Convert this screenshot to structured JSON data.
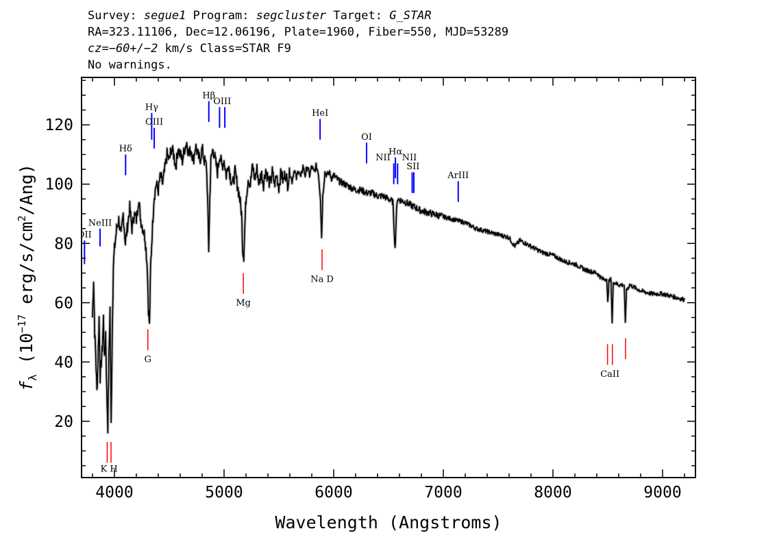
{
  "header": {
    "survey_label": "Survey:",
    "survey": "segue1",
    "program_label": "Program:",
    "program": "segcluster",
    "target_label": "Target:",
    "target": "G_STAR",
    "line2": "RA=323.11106, Dec=12.06196, Plate=1960, Fiber=550, MJD=53289",
    "cz": "cz=−60+/−2",
    "line3_rest": " km/s Class=STAR F9",
    "line4": "No warnings."
  },
  "chart_data": {
    "type": "line",
    "xlabel": "Wavelength (Angstroms)",
    "ylabel": "f_λ (10^-17 erg/s/cm^2/Ang)",
    "xlim": [
      3700,
      9300
    ],
    "ylim": [
      1,
      136
    ],
    "x_ticks": [
      4000,
      5000,
      6000,
      7000,
      8000,
      9000
    ],
    "y_ticks": [
      20,
      40,
      60,
      80,
      100,
      120
    ],
    "grid": false,
    "spectrum_color": "#000000",
    "error_color": "#bbbbbb",
    "emission_color": "#0000ff",
    "absorption_color": "#ff0000",
    "spectrum_points": [
      [
        3800,
        55
      ],
      [
        3810,
        68
      ],
      [
        3820,
        50
      ],
      [
        3830,
        42
      ],
      [
        3840,
        30
      ],
      [
        3850,
        40
      ],
      [
        3860,
        55
      ],
      [
        3870,
        35
      ],
      [
        3880,
        40
      ],
      [
        3890,
        45
      ],
      [
        3900,
        55
      ],
      [
        3910,
        40
      ],
      [
        3920,
        50
      ],
      [
        3930,
        30
      ],
      [
        3940,
        18
      ],
      [
        3950,
        42
      ],
      [
        3960,
        58
      ],
      [
        3970,
        19
      ],
      [
        3980,
        50
      ],
      [
        3990,
        72
      ],
      [
        4000,
        78
      ],
      [
        4020,
        85
      ],
      [
        4040,
        88
      ],
      [
        4060,
        82
      ],
      [
        4080,
        90
      ],
      [
        4100,
        80
      ],
      [
        4120,
        86
      ],
      [
        4140,
        92
      ],
      [
        4160,
        85
      ],
      [
        4180,
        90
      ],
      [
        4200,
        88
      ],
      [
        4220,
        95
      ],
      [
        4240,
        88
      ],
      [
        4260,
        85
      ],
      [
        4280,
        82
      ],
      [
        4300,
        72
      ],
      [
        4310,
        58
      ],
      [
        4320,
        52
      ],
      [
        4330,
        72
      ],
      [
        4340,
        80
      ],
      [
        4360,
        95
      ],
      [
        4380,
        100
      ],
      [
        4400,
        98
      ],
      [
        4420,
        103
      ],
      [
        4440,
        100
      ],
      [
        4460,
        105
      ],
      [
        4480,
        110
      ],
      [
        4500,
        108
      ],
      [
        4520,
        112
      ],
      [
        4540,
        110
      ],
      [
        4560,
        106
      ],
      [
        4580,
        112
      ],
      [
        4600,
        110
      ],
      [
        4620,
        108
      ],
      [
        4640,
        112
      ],
      [
        4660,
        114
      ],
      [
        4680,
        110
      ],
      [
        4700,
        112
      ],
      [
        4720,
        108
      ],
      [
        4740,
        113
      ],
      [
        4760,
        110
      ],
      [
        4780,
        108
      ],
      [
        4800,
        112
      ],
      [
        4820,
        108
      ],
      [
        4840,
        106
      ],
      [
        4850,
        95
      ],
      [
        4860,
        78
      ],
      [
        4870,
        95
      ],
      [
        4880,
        108
      ],
      [
        4900,
        112
      ],
      [
        4920,
        108
      ],
      [
        4940,
        104
      ],
      [
        4960,
        110
      ],
      [
        4980,
        106
      ],
      [
        5000,
        108
      ],
      [
        5020,
        103
      ],
      [
        5040,
        107
      ],
      [
        5060,
        102
      ],
      [
        5080,
        100
      ],
      [
        5100,
        104
      ],
      [
        5120,
        100
      ],
      [
        5140,
        96
      ],
      [
        5160,
        90
      ],
      [
        5170,
        78
      ],
      [
        5180,
        76
      ],
      [
        5190,
        86
      ],
      [
        5200,
        95
      ],
      [
        5220,
        102
      ],
      [
        5240,
        100
      ],
      [
        5260,
        106
      ],
      [
        5280,
        102
      ],
      [
        5300,
        105
      ],
      [
        5320,
        100
      ],
      [
        5340,
        104
      ],
      [
        5360,
        100
      ],
      [
        5380,
        105
      ],
      [
        5400,
        102
      ],
      [
        5420,
        100
      ],
      [
        5440,
        104
      ],
      [
        5460,
        100
      ],
      [
        5480,
        103
      ],
      [
        5500,
        99
      ],
      [
        5520,
        104
      ],
      [
        5540,
        101
      ],
      [
        5560,
        104
      ],
      [
        5580,
        100
      ],
      [
        5600,
        104
      ],
      [
        5620,
        101
      ],
      [
        5640,
        105
      ],
      [
        5660,
        102
      ],
      [
        5680,
        105
      ],
      [
        5700,
        102
      ],
      [
        5720,
        106
      ],
      [
        5740,
        103
      ],
      [
        5760,
        106
      ],
      [
        5780,
        103
      ],
      [
        5800,
        106
      ],
      [
        5820,
        104
      ],
      [
        5840,
        106
      ],
      [
        5860,
        104
      ],
      [
        5880,
        95
      ],
      [
        5890,
        82
      ],
      [
        5900,
        96
      ],
      [
        5920,
        104
      ],
      [
        5940,
        103
      ],
      [
        5960,
        104
      ],
      [
        5980,
        102
      ],
      [
        6000,
        103
      ],
      [
        6050,
        101
      ],
      [
        6100,
        100
      ],
      [
        6150,
        99
      ],
      [
        6200,
        98
      ],
      [
        6250,
        98
      ],
      [
        6300,
        97
      ],
      [
        6350,
        97
      ],
      [
        6400,
        96
      ],
      [
        6450,
        96
      ],
      [
        6500,
        95
      ],
      [
        6540,
        94
      ],
      [
        6560,
        78
      ],
      [
        6570,
        88
      ],
      [
        6580,
        95
      ],
      [
        6650,
        94
      ],
      [
        6700,
        93
      ],
      [
        6800,
        91
      ],
      [
        6900,
        90
      ],
      [
        7000,
        89
      ],
      [
        7100,
        88
      ],
      [
        7200,
        87
      ],
      [
        7300,
        85
      ],
      [
        7400,
        84
      ],
      [
        7500,
        83
      ],
      [
        7600,
        82
      ],
      [
        7650,
        79
      ],
      [
        7700,
        81
      ],
      [
        7800,
        79
      ],
      [
        7900,
        77
      ],
      [
        8000,
        76
      ],
      [
        8100,
        74
      ],
      [
        8200,
        73
      ],
      [
        8300,
        71
      ],
      [
        8400,
        70
      ],
      [
        8450,
        68
      ],
      [
        8490,
        68
      ],
      [
        8500,
        60
      ],
      [
        8510,
        67
      ],
      [
        8530,
        68
      ],
      [
        8540,
        53
      ],
      [
        8550,
        67
      ],
      [
        8600,
        66
      ],
      [
        8650,
        66
      ],
      [
        8660,
        53
      ],
      [
        8670,
        64
      ],
      [
        8700,
        66
      ],
      [
        8800,
        64
      ],
      [
        8900,
        63
      ],
      [
        9000,
        63
      ],
      [
        9100,
        62
      ],
      [
        9200,
        61
      ]
    ],
    "emission_lines": [
      {
        "label": "OII",
        "wave": 3727,
        "y_bottom": 73,
        "y_top": 81
      },
      {
        "label": "NeIII",
        "wave": 3869,
        "y_bottom": 79,
        "y_top": 85
      },
      {
        "label": "Hδ",
        "wave": 4102,
        "y_bottom": 103,
        "y_top": 110
      },
      {
        "label": "Hγ",
        "wave": 4340,
        "y_bottom": 115,
        "y_top": 124
      },
      {
        "label": "OIII",
        "wave": 4363,
        "y_bottom": 112,
        "y_top": 119
      },
      {
        "label": "Hβ",
        "wave": 4861,
        "y_bottom": 121,
        "y_top": 128
      },
      {
        "label": "OIII",
        "wave": 4959,
        "y_bottom": 119,
        "y_top": 126
      },
      {
        "label": "OIII",
        "wave": 5007,
        "y_bottom": 119,
        "y_top": 126
      },
      {
        "label": "HeI",
        "wave": 5876,
        "y_bottom": 115,
        "y_top": 122
      },
      {
        "label": "OI",
        "wave": 6300,
        "y_bottom": 107,
        "y_top": 114
      },
      {
        "label": "NII",
        "wave": 6548,
        "y_bottom": 100,
        "y_top": 107
      },
      {
        "label": "Hα",
        "wave": 6563,
        "y_bottom": 102,
        "y_top": 109
      },
      {
        "label": "NII",
        "wave": 6583,
        "y_bottom": 100,
        "y_top": 107
      },
      {
        "label": "SII",
        "wave": 6716,
        "y_bottom": 97,
        "y_top": 104
      },
      {
        "label": "SII",
        "wave": 6731,
        "y_bottom": 97,
        "y_top": 104
      },
      {
        "label": "ArIII",
        "wave": 7136,
        "y_bottom": 94,
        "y_top": 101
      }
    ],
    "absorption_lines": [
      {
        "label": "K",
        "wave": 3934,
        "y_bottom": 6,
        "y_top": 13
      },
      {
        "label": "H",
        "wave": 3969,
        "y_bottom": 6,
        "y_top": 13
      },
      {
        "label": "G",
        "wave": 4305,
        "y_bottom": 44,
        "y_top": 51
      },
      {
        "label": "Mg",
        "wave": 5176,
        "y_bottom": 63,
        "y_top": 70
      },
      {
        "label": "Na",
        "wave": 5894,
        "y_bottom": 71,
        "y_top": 78
      },
      {
        "label": "CaII",
        "wave": 8498,
        "y_bottom": 39,
        "y_top": 46
      },
      {
        "label": "CaII",
        "wave": 8542,
        "y_bottom": 39,
        "y_top": 46
      },
      {
        "label": "CaII",
        "wave": 8662,
        "y_bottom": 41,
        "y_top": 48
      }
    ],
    "emission_labels": [
      {
        "text": "OII",
        "wave": 3727,
        "y": 82
      },
      {
        "text": "NeIII",
        "wave": 3869,
        "y": 86
      },
      {
        "text": "Hδ",
        "wave": 4102,
        "y": 111
      },
      {
        "text": "Hγ",
        "wave": 4340,
        "y": 125
      },
      {
        "text": "OIII",
        "wave": 4363,
        "y": 120
      },
      {
        "text": "Hβ",
        "wave": 4861,
        "y": 129
      },
      {
        "text": "OIII",
        "wave": 4983,
        "y": 127
      },
      {
        "text": "HeI",
        "wave": 5876,
        "y": 123
      },
      {
        "text": "OI",
        "wave": 6300,
        "y": 115
      },
      {
        "text": "NII",
        "wave": 6450,
        "y": 108
      },
      {
        "text": "Hα",
        "wave": 6563,
        "y": 110
      },
      {
        "text": "NII",
        "wave": 6690,
        "y": 108
      },
      {
        "text": "SII",
        "wave": 6724,
        "y": 105
      },
      {
        "text": "ArIII",
        "wave": 7136,
        "y": 102
      }
    ],
    "absorption_labels": [
      {
        "text": "K H",
        "wave": 3951,
        "y": 3
      },
      {
        "text": "G",
        "wave": 4305,
        "y": 40
      },
      {
        "text": "Mg",
        "wave": 5176,
        "y": 59
      },
      {
        "text": "Na  D",
        "wave": 5894,
        "y": 67
      },
      {
        "text": "CaII",
        "wave": 8520,
        "y": 35
      }
    ]
  }
}
